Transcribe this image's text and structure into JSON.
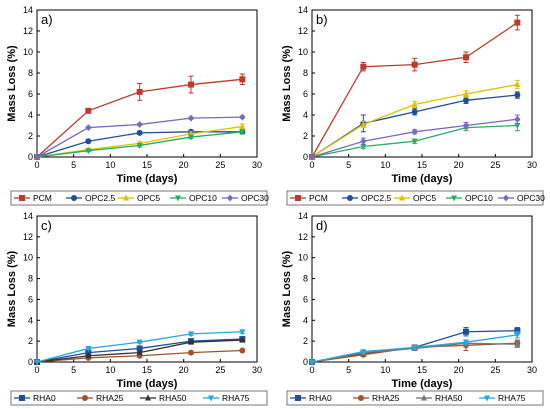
{
  "chart_data": [
    {
      "type": "line",
      "panel_label": "a)",
      "xlabel": "Time (days)",
      "ylabel": "Mass Loss (%)",
      "xlim": [
        0,
        30
      ],
      "ylim": [
        0,
        14
      ],
      "xticks": [
        0,
        5,
        10,
        15,
        20,
        25,
        30
      ],
      "yticks": [
        0,
        2,
        4,
        6,
        8,
        10,
        12,
        14
      ],
      "x": [
        0,
        7,
        14,
        21,
        28
      ],
      "series": [
        {
          "name": "PCM",
          "color": "#c0392b",
          "marker": "square",
          "values": [
            0,
            4.4,
            6.2,
            6.9,
            7.4
          ],
          "errors": [
            0,
            0.2,
            0.8,
            0.8,
            0.5
          ]
        },
        {
          "name": "OPC2.5",
          "color": "#1f4e9c",
          "marker": "circle",
          "values": [
            0,
            1.5,
            2.3,
            2.4,
            2.4
          ],
          "errors": [
            0,
            0.1,
            0.15,
            0.15,
            0.15
          ]
        },
        {
          "name": "OPC5",
          "color": "#e0c000",
          "marker": "triangle",
          "values": [
            0,
            0.7,
            1.3,
            2.2,
            2.9
          ],
          "errors": [
            0,
            0.1,
            0.15,
            0.2,
            0.25
          ]
        },
        {
          "name": "OPC10",
          "color": "#27ae60",
          "marker": "triangle-down",
          "values": [
            0,
            0.6,
            1.1,
            1.9,
            2.4
          ],
          "errors": [
            0,
            0.1,
            0.15,
            0.15,
            0.2
          ]
        },
        {
          "name": "OPC30",
          "color": "#7b68c4",
          "marker": "diamond",
          "values": [
            0,
            2.8,
            3.1,
            3.7,
            3.8
          ],
          "errors": [
            0,
            0.1,
            0.1,
            0.1,
            0.1
          ]
        }
      ]
    },
    {
      "type": "line",
      "panel_label": "b)",
      "xlabel": "Time (days)",
      "ylabel": "Mass Loss (%)",
      "xlim": [
        0,
        30
      ],
      "ylim": [
        0,
        14
      ],
      "xticks": [
        0,
        5,
        10,
        15,
        20,
        25,
        30
      ],
      "yticks": [
        0,
        2,
        4,
        6,
        8,
        10,
        12,
        14
      ],
      "x": [
        0,
        7,
        14,
        21,
        28
      ],
      "series": [
        {
          "name": "PCM",
          "color": "#c0392b",
          "marker": "square",
          "values": [
            0,
            8.6,
            8.8,
            9.5,
            12.8
          ],
          "errors": [
            0,
            0.4,
            0.6,
            0.5,
            0.7
          ]
        },
        {
          "name": "OPC2.5",
          "color": "#1f4e9c",
          "marker": "circle",
          "values": [
            0,
            3.2,
            4.3,
            5.4,
            5.9
          ],
          "errors": [
            0,
            0.8,
            0.3,
            0.3,
            0.3
          ]
        },
        {
          "name": "OPC5",
          "color": "#e0c000",
          "marker": "triangle",
          "values": [
            0,
            3.1,
            5.0,
            6.0,
            6.9
          ],
          "errors": [
            0,
            0.3,
            0.3,
            0.3,
            0.4
          ]
        },
        {
          "name": "OPC10",
          "color": "#27ae60",
          "marker": "triangle-down",
          "values": [
            0,
            1.0,
            1.5,
            2.8,
            3.0
          ],
          "errors": [
            0,
            0.2,
            0.2,
            0.3,
            0.5
          ]
        },
        {
          "name": "OPC30",
          "color": "#7b68c4",
          "marker": "diamond",
          "values": [
            0,
            1.5,
            2.4,
            3.0,
            3.6
          ],
          "errors": [
            0,
            0.3,
            0.2,
            0.3,
            0.4
          ]
        }
      ]
    },
    {
      "type": "line",
      "panel_label": "c)",
      "xlabel": "Time (days)",
      "ylabel": "Mass Loss (%)",
      "xlim": [
        0,
        30
      ],
      "ylim": [
        0,
        14
      ],
      "xticks": [
        0,
        5,
        10,
        15,
        20,
        25,
        30
      ],
      "yticks": [
        0,
        2,
        4,
        6,
        8,
        10,
        12,
        14
      ],
      "x": [
        0,
        7,
        14,
        21,
        28
      ],
      "series": [
        {
          "name": "RHA0",
          "color": "#1f4e9c",
          "marker": "square",
          "values": [
            0,
            0.9,
            1.3,
            2.0,
            2.2
          ],
          "errors": [
            0,
            0.1,
            0.1,
            0.1,
            0.15
          ]
        },
        {
          "name": "RHA25",
          "color": "#a0522d",
          "marker": "circle",
          "values": [
            0,
            0.4,
            0.6,
            0.9,
            1.1
          ],
          "errors": [
            0,
            0.05,
            0.05,
            0.05,
            0.05
          ]
        },
        {
          "name": "RHA50",
          "color": "#333333",
          "marker": "triangle",
          "values": [
            0,
            0.6,
            0.9,
            1.9,
            2.1
          ],
          "errors": [
            0,
            0.1,
            0.1,
            0.1,
            0.1
          ]
        },
        {
          "name": "RHA75",
          "color": "#29a8e0",
          "marker": "triangle-down",
          "values": [
            0,
            1.3,
            1.9,
            2.7,
            2.9
          ],
          "errors": [
            0,
            0.1,
            0.1,
            0.15,
            0.15
          ]
        }
      ]
    },
    {
      "type": "line",
      "panel_label": "d)",
      "xlabel": "Time (days)",
      "ylabel": "Mass Loss (%)",
      "xlim": [
        0,
        30
      ],
      "ylim": [
        0,
        14
      ],
      "xticks": [
        0,
        5,
        10,
        15,
        20,
        25,
        30
      ],
      "yticks": [
        0,
        2,
        4,
        6,
        8,
        10,
        12,
        14
      ],
      "x": [
        0,
        7,
        14,
        21,
        28
      ],
      "series": [
        {
          "name": "RHA0",
          "color": "#1f4e9c",
          "marker": "square",
          "values": [
            0,
            0.8,
            1.4,
            2.9,
            3.0
          ],
          "errors": [
            0,
            0.1,
            0.2,
            0.4,
            0.3
          ]
        },
        {
          "name": "RHA25",
          "color": "#a0522d",
          "marker": "circle",
          "values": [
            0,
            0.7,
            1.4,
            1.6,
            1.8
          ],
          "errors": [
            0,
            0.1,
            0.2,
            0.5,
            0.3
          ]
        },
        {
          "name": "RHA50",
          "color": "#777777",
          "marker": "triangle",
          "values": [
            0,
            0.9,
            1.3,
            1.8,
            1.7
          ],
          "errors": [
            0,
            0.1,
            0.2,
            0.3,
            0.3
          ]
        },
        {
          "name": "RHA75",
          "color": "#29a8e0",
          "marker": "triangle-down",
          "values": [
            0,
            1.0,
            1.4,
            1.9,
            2.6
          ],
          "errors": [
            0,
            0.1,
            0.2,
            0.2,
            0.3
          ]
        }
      ]
    }
  ]
}
